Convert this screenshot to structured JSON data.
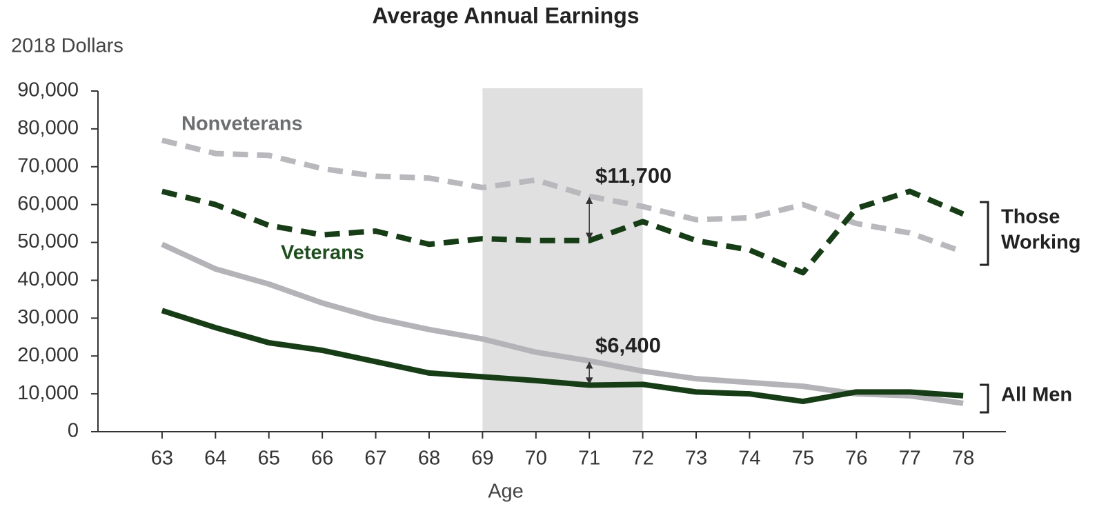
{
  "chart_data": {
    "type": "line",
    "title": "Average Annual Earnings",
    "y_axis_label": "2018 Dollars",
    "x_axis_label": "Age",
    "x": [
      63,
      64,
      65,
      66,
      67,
      68,
      69,
      70,
      71,
      72,
      73,
      74,
      75,
      76,
      77,
      78
    ],
    "xlim": [
      61.8,
      78.8
    ],
    "xticks": [
      63,
      64,
      65,
      66,
      67,
      68,
      69,
      70,
      71,
      72,
      73,
      74,
      75,
      76,
      77,
      78
    ],
    "ylim": [
      0,
      90000
    ],
    "yticks": [
      0,
      {
        "value": 10000,
        "label": "10,000"
      },
      {
        "value": 20000,
        "label": "20,000"
      },
      {
        "value": 30000,
        "label": "30,000"
      },
      {
        "value": 40000,
        "label": "40,000"
      },
      {
        "value": 50000,
        "label": "50,000"
      },
      {
        "value": 60000,
        "label": "60,000"
      },
      {
        "value": 70000,
        "label": "70,000"
      },
      {
        "value": 80000,
        "label": "80,000"
      },
      {
        "value": 90000,
        "label": "90,000"
      }
    ],
    "highlight_x": [
      69,
      72
    ],
    "highlight_color": "#e0e0e0",
    "series": [
      {
        "color": "#b8b8bd",
        "dashed": true,
        "values": [
          77000,
          73500,
          73000,
          69500,
          67500,
          67000,
          64500,
          66500,
          62200,
          59500,
          56000,
          56500,
          60000,
          55000,
          52500,
          47500
        ]
      },
      {
        "color": "#173d17",
        "dashed": true,
        "values": [
          63500,
          60000,
          54500,
          52000,
          53000,
          49500,
          51000,
          50500,
          50500,
          55500,
          50500,
          48000,
          42000,
          59000,
          63500,
          57500
        ]
      },
      {
        "color": "#b3b3b8",
        "dashed": false,
        "values": [
          49500,
          43000,
          39000,
          34000,
          30000,
          27000,
          24500,
          21000,
          18700,
          16000,
          14000,
          13000,
          12000,
          10000,
          9500,
          7500
        ]
      },
      {
        "color": "#173d17",
        "dashed": false,
        "values": [
          32000,
          27500,
          23500,
          21500,
          18500,
          15500,
          14500,
          13500,
          12300,
          12500,
          10500,
          10000,
          8000,
          10500,
          10500,
          9500
        ]
      }
    ],
    "series_labels": [
      {
        "text": "Nonveterans",
        "color": "#6d6e71"
      },
      {
        "text": "Veterans",
        "color": "#1e4d1e"
      }
    ],
    "group_labels": [
      {
        "lines": [
          "Those",
          "Working"
        ]
      },
      {
        "lines": [
          "All Men"
        ]
      }
    ],
    "gap_labels": [
      {
        "text": "$11,700",
        "at": 71
      },
      {
        "text": "$6,400",
        "at": 71
      }
    ]
  }
}
